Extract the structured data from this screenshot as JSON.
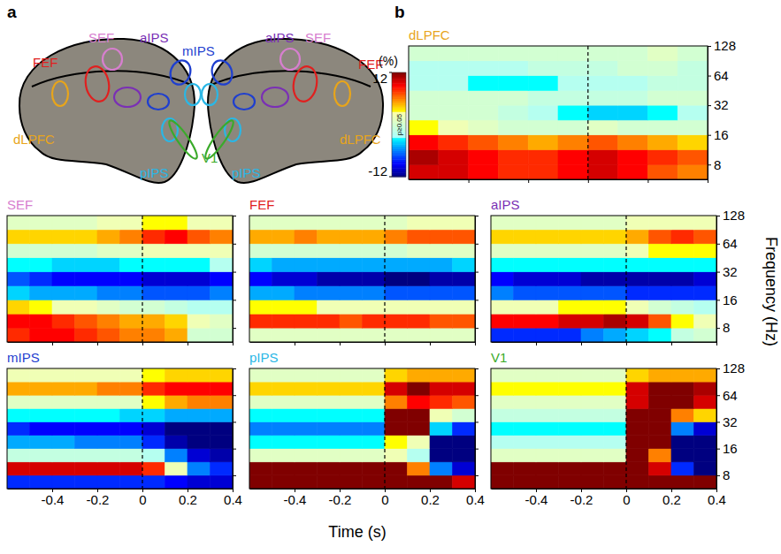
{
  "diagram": {
    "letter": "a",
    "regions": [
      {
        "name": "SEF",
        "color": "#d77fcf"
      },
      {
        "name": "aIPS",
        "color": "#7a2fb5"
      },
      {
        "name": "mIPS",
        "color": "#1f3fcf"
      },
      {
        "name": "FEF",
        "color": "#e0201f"
      },
      {
        "name": "dLPFC",
        "color": "#e8a51a"
      },
      {
        "name": "pIPS",
        "color": "#2ab7e6"
      },
      {
        "name": "V1",
        "color": "#3aaa2a"
      }
    ]
  },
  "heatmap_panel": {
    "letter": "b",
    "xlabel": "Time (s)",
    "ylabel": "Frequency (Hz)",
    "event_time": 0,
    "colorbar": {
      "range": [
        -12,
        12
      ],
      "ticks": [
        -12,
        12
      ],
      "unit": "(%)",
      "mask_label": "p≥0.05",
      "mask_range": [
        -3,
        3
      ]
    }
  },
  "chart_data": [
    {
      "type": "heatmap",
      "title": "dLPFC",
      "color": "#e8a51a",
      "x": [
        -0.55,
        -0.45,
        -0.35,
        -0.25,
        -0.15,
        -0.05,
        0.05,
        0.15,
        0.25,
        0.35
      ],
      "y": [
        6.73,
        9.51,
        13.45,
        19.03,
        26.91,
        38.05,
        53.82,
        76.11,
        107.63
      ],
      "z": [
        [
          10,
          10,
          9,
          8,
          8,
          9,
          10,
          9,
          7,
          6
        ],
        [
          11,
          10,
          9,
          8,
          8,
          9,
          10,
          9,
          8,
          7
        ],
        [
          9,
          8,
          7,
          6,
          5,
          6,
          7,
          6,
          5,
          4
        ],
        [
          3,
          2,
          1,
          0,
          0,
          0,
          1,
          0,
          0,
          0
        ],
        [
          0,
          0,
          0,
          -1,
          -2,
          -3,
          -4,
          -4,
          -3,
          -2
        ],
        [
          0,
          0,
          0,
          0,
          -1,
          -1,
          -1,
          -1,
          0,
          0
        ],
        [
          -2,
          -2,
          -3,
          -3,
          -3,
          -2,
          -2,
          -2,
          -1,
          -1
        ],
        [
          -2,
          -2,
          -2,
          -2,
          -1,
          -1,
          -1,
          0,
          0,
          -1
        ],
        [
          0,
          0,
          0,
          0,
          0,
          0,
          0,
          0,
          1,
          0
        ]
      ],
      "xlim": [
        -0.6,
        0.4
      ],
      "xticks": [
        -0.4,
        -0.2,
        0,
        0.2,
        0.4
      ],
      "ylim": [
        5.66,
        128
      ],
      "yticks": [
        8,
        16,
        32,
        64,
        128
      ],
      "log": "y",
      "tick_labels": "y"
    },
    {
      "type": "heatmap",
      "title": "SEF",
      "color": "#d77fcf",
      "x": [
        -0.55,
        -0.45,
        -0.35,
        -0.25,
        -0.15,
        -0.05,
        0.05,
        0.15,
        0.25,
        0.35
      ],
      "y": [
        6.73,
        9.51,
        13.45,
        19.03,
        26.91,
        38.05,
        53.82,
        76.11,
        107.63
      ],
      "z": [
        [
          8,
          9,
          9,
          8,
          7,
          6,
          6,
          5,
          0,
          0
        ],
        [
          9,
          9,
          8,
          7,
          6,
          5,
          5,
          4,
          2,
          1
        ],
        [
          4,
          3,
          2,
          2,
          1,
          0,
          0,
          -1,
          -2,
          -2
        ],
        [
          -4,
          -5,
          -5,
          -5,
          -6,
          -6,
          -7,
          -7,
          -7,
          -6
        ],
        [
          -7,
          -8,
          -9,
          -9,
          -9,
          -9,
          -10,
          -10,
          -10,
          -9
        ],
        [
          -3,
          -3,
          -4,
          -4,
          -4,
          -3,
          -3,
          -3,
          -3,
          -2
        ],
        [
          0,
          0,
          0,
          0,
          1,
          1,
          2,
          2,
          2,
          2
        ],
        [
          4,
          4,
          4,
          4,
          5,
          6,
          8,
          9,
          7,
          6
        ],
        [
          1,
          1,
          1,
          1,
          2,
          2,
          3,
          3,
          2,
          2
        ]
      ],
      "xlim": [
        -0.6,
        0.4
      ],
      "xticks": [
        -0.4,
        -0.2,
        0,
        0.2,
        0.4
      ],
      "ylim": [
        5.66,
        128
      ],
      "yticks": [
        8,
        16,
        32,
        64,
        128
      ],
      "log": "y",
      "tick_labels": false
    },
    {
      "type": "heatmap",
      "title": "FEF",
      "color": "#e0201f",
      "x": [
        -0.55,
        -0.45,
        -0.35,
        -0.25,
        -0.15,
        -0.05,
        0.05,
        0.15,
        0.25,
        0.35
      ],
      "y": [
        6.73,
        9.51,
        13.45,
        19.03,
        26.91,
        38.05,
        53.82,
        76.11,
        107.63
      ],
      "z": [
        [
          1,
          1,
          1,
          1,
          1,
          1,
          1,
          1,
          1,
          1
        ],
        [
          8,
          8,
          8,
          8,
          7,
          8,
          8,
          8,
          7,
          7
        ],
        [
          3,
          3,
          3,
          2,
          2,
          2,
          2,
          2,
          2,
          2
        ],
        [
          -5,
          -5,
          -6,
          -6,
          -6,
          -6,
          -7,
          -7,
          -7,
          -7
        ],
        [
          -9,
          -10,
          -10,
          -11,
          -11,
          -11,
          -12,
          -12,
          -11,
          -11
        ],
        [
          -4,
          -5,
          -5,
          -5,
          -5,
          -5,
          -5,
          -5,
          -5,
          -4
        ],
        [
          0,
          0,
          0,
          0,
          0,
          0,
          0,
          1,
          1,
          1
        ],
        [
          5,
          5,
          6,
          5,
          5,
          5,
          6,
          7,
          7,
          7
        ],
        [
          1,
          1,
          1,
          1,
          1,
          1,
          1,
          2,
          2,
          2
        ]
      ],
      "xlim": [
        -0.6,
        0.4
      ],
      "xticks": [
        -0.4,
        -0.2,
        0,
        0.2,
        0.4
      ],
      "ylim": [
        5.66,
        128
      ],
      "yticks": [
        8,
        16,
        32,
        64,
        128
      ],
      "log": "y",
      "tick_labels": false
    },
    {
      "type": "heatmap",
      "title": "aIPS",
      "color": "#7a2fb5",
      "x": [
        -0.55,
        -0.45,
        -0.35,
        -0.25,
        -0.15,
        -0.05,
        0.05,
        0.15,
        0.25,
        0.35
      ],
      "y": [
        6.73,
        9.51,
        13.45,
        19.03,
        26.91,
        38.05,
        53.82,
        76.11,
        107.63
      ],
      "z": [
        [
          -8,
          -8,
          -8,
          -8,
          -6,
          -5,
          -4,
          -3,
          -1,
          0
        ],
        [
          9,
          9,
          9,
          10,
          10,
          11,
          10,
          7,
          3,
          2
        ],
        [
          2,
          2,
          2,
          3,
          3,
          3,
          2,
          0,
          -1,
          -2
        ],
        [
          -6,
          -7,
          -7,
          -7,
          -7,
          -7,
          -8,
          -8,
          -8,
          -8
        ],
        [
          -9,
          -10,
          -10,
          -10,
          -11,
          -11,
          -11,
          -11,
          -11,
          -10
        ],
        [
          -3,
          -3,
          -3,
          -3,
          -3,
          -3,
          -3,
          -3,
          -3,
          -3
        ],
        [
          1,
          1,
          1,
          1,
          1,
          1,
          2,
          3,
          3,
          3
        ],
        [
          4,
          4,
          4,
          4,
          4,
          4,
          5,
          7,
          8,
          7
        ],
        [
          1,
          1,
          1,
          1,
          1,
          1,
          2,
          2,
          2,
          2
        ]
      ],
      "xlim": [
        -0.6,
        0.4
      ],
      "xticks": [
        -0.4,
        -0.2,
        0,
        0.2,
        0.4
      ],
      "ylim": [
        5.66,
        128
      ],
      "yticks": [
        8,
        16,
        32,
        64,
        128
      ],
      "log": "y",
      "tick_labels": "y"
    },
    {
      "type": "heatmap",
      "title": "mIPS",
      "color": "#1f3fcf",
      "x": [
        -0.55,
        -0.45,
        -0.35,
        -0.25,
        -0.15,
        -0.05,
        0.05,
        0.15,
        0.25,
        0.35
      ],
      "y": [
        6.73,
        9.51,
        13.45,
        19.03,
        26.91,
        38.05,
        53.82,
        76.11,
        107.63
      ],
      "z": [
        [
          -8,
          -8,
          -8,
          -8,
          -8,
          -8,
          -8,
          -9,
          -10,
          -10
        ],
        [
          10,
          10,
          10,
          10,
          10,
          10,
          8,
          2,
          -6,
          -8
        ],
        [
          -1,
          -1,
          -1,
          -1,
          -1,
          -1,
          -2,
          -6,
          -10,
          -11
        ],
        [
          -5,
          -5,
          -5,
          -6,
          -6,
          -6,
          -8,
          -11,
          -13,
          -13
        ],
        [
          -8,
          -9,
          -9,
          -9,
          -9,
          -9,
          -10,
          -12,
          -13,
          -13
        ],
        [
          -3,
          -3,
          -3,
          -3,
          -3,
          -4,
          -4,
          -5,
          -5,
          -5
        ],
        [
          1,
          1,
          1,
          1,
          1,
          1,
          3,
          5,
          6,
          6
        ],
        [
          5,
          5,
          5,
          5,
          6,
          6,
          8,
          9,
          9,
          9
        ],
        [
          2,
          2,
          2,
          2,
          2,
          2,
          3,
          4,
          4,
          4
        ]
      ],
      "xlim": [
        -0.6,
        0.4
      ],
      "xticks": [
        -0.4,
        -0.2,
        0,
        0.2,
        0.4
      ],
      "ylim": [
        5.66,
        128
      ],
      "yticks": [
        8,
        16,
        32,
        64,
        128
      ],
      "log": "y",
      "tick_labels": "x"
    },
    {
      "type": "heatmap",
      "title": "pIPS",
      "color": "#2ab7e6",
      "x": [
        -0.55,
        -0.45,
        -0.35,
        -0.25,
        -0.15,
        -0.05,
        0.05,
        0.15,
        0.25,
        0.35
      ],
      "y": [
        6.73,
        9.51,
        13.45,
        19.03,
        26.91,
        38.05,
        53.82,
        76.11,
        107.63
      ],
      "z": [
        [
          14,
          14,
          14,
          14,
          14,
          14,
          14,
          14,
          12,
          10
        ],
        [
          14,
          14,
          14,
          14,
          14,
          14,
          12,
          6,
          -6,
          -10
        ],
        [
          1,
          1,
          1,
          1,
          1,
          1,
          2,
          -2,
          -14,
          -16
        ],
        [
          -3,
          -3,
          -3,
          -3,
          -3,
          -3,
          3,
          2,
          -16,
          -16
        ],
        [
          -6,
          -6,
          -6,
          -6,
          -6,
          -6,
          14,
          16,
          -4,
          -8
        ],
        [
          -3,
          -3,
          -3,
          -3,
          -3,
          -3,
          12,
          14,
          2,
          0
        ],
        [
          1,
          1,
          1,
          1,
          1,
          1,
          6,
          9,
          8,
          7
        ],
        [
          4,
          4,
          4,
          4,
          4,
          4,
          10,
          12,
          10,
          10
        ],
        [
          1,
          1,
          1,
          1,
          1,
          1,
          4,
          5,
          5,
          5
        ]
      ],
      "xlim": [
        -0.6,
        0.4
      ],
      "xticks": [
        -0.4,
        -0.2,
        0,
        0.2,
        0.4
      ],
      "ylim": [
        5.66,
        128
      ],
      "yticks": [
        8,
        16,
        32,
        64,
        128
      ],
      "log": "y",
      "tick_labels": "x"
    },
    {
      "type": "heatmap",
      "title": "V1",
      "color": "#3aaa2a",
      "x": [
        -0.55,
        -0.45,
        -0.35,
        -0.25,
        -0.15,
        -0.05,
        0.05,
        0.15,
        0.25,
        0.35
      ],
      "y": [
        6.73,
        9.51,
        13.45,
        19.03,
        26.91,
        38.05,
        53.82,
        76.11,
        107.63
      ],
      "z": [
        [
          14,
          14,
          14,
          14,
          14,
          14,
          14,
          14,
          14,
          12
        ],
        [
          14,
          14,
          14,
          14,
          14,
          14,
          14,
          10,
          -8,
          -12
        ],
        [
          1,
          1,
          1,
          1,
          1,
          1,
          12,
          6,
          -14,
          -16
        ],
        [
          -2,
          -2,
          -2,
          -2,
          -2,
          -2,
          14,
          12,
          -16,
          -16
        ],
        [
          -3,
          -3,
          -3,
          -3,
          -3,
          -3,
          16,
          16,
          -6,
          -10
        ],
        [
          -1,
          -1,
          -1,
          -1,
          -1,
          -1,
          14,
          16,
          6,
          4
        ],
        [
          1,
          1,
          1,
          1,
          1,
          1,
          10,
          14,
          12,
          10
        ],
        [
          3,
          3,
          3,
          3,
          3,
          3,
          10,
          13,
          12,
          11
        ],
        [
          1,
          1,
          1,
          1,
          1,
          1,
          4,
          5,
          5,
          5
        ]
      ],
      "xlim": [
        -0.6,
        0.4
      ],
      "xticks": [
        -0.4,
        -0.2,
        0,
        0.2,
        0.4
      ],
      "ylim": [
        5.66,
        128
      ],
      "yticks": [
        8,
        16,
        32,
        64,
        128
      ],
      "log": "y",
      "tick_labels": true
    }
  ]
}
